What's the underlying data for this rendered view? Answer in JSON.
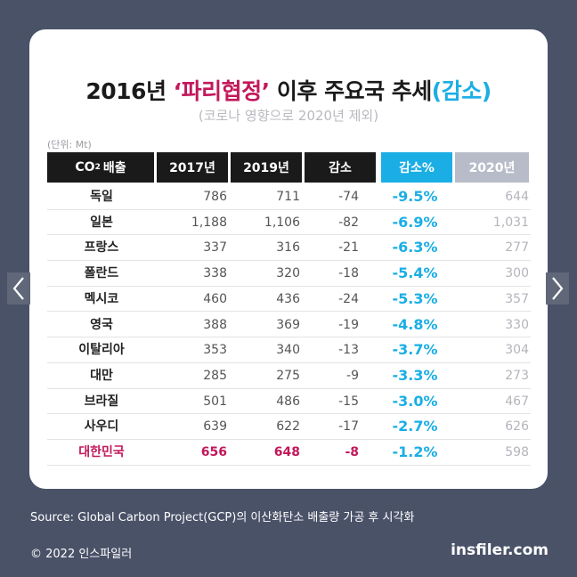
{
  "title": {
    "prefix": "2016년 ",
    "quoted": "‘파리협정’",
    "middle": " 이후 주요국 추세",
    "accent": "(감소)"
  },
  "subtitle": "(코로나 영향으로 2020년 제외)",
  "unit": "(단위: Mt)",
  "headers": {
    "country_main": "CO",
    "country_sub": "2",
    "country_tail": "배출",
    "y2017": "2017년",
    "y2019": "2019년",
    "decrease": "감소",
    "pct": "감소%",
    "y2020": "2020년"
  },
  "colors": {
    "background": "#4a5268",
    "header_dark": "#1a1a1a",
    "header_cyan": "#1aaee5",
    "header_grey": "#b8bcc9",
    "highlight": "#c2185b"
  },
  "chart_data": {
    "type": "table",
    "columns": [
      "CO2 배출",
      "2017년",
      "2019년",
      "감소",
      "감소%",
      "2020년"
    ],
    "rows": [
      {
        "country": "독일",
        "y2017": "786",
        "y2019": "711",
        "decrease": "-74",
        "pct": "-9.5%",
        "y2020": "644"
      },
      {
        "country": "일본",
        "y2017": "1,188",
        "y2019": "1,106",
        "decrease": "-82",
        "pct": "-6.9%",
        "y2020": "1,031"
      },
      {
        "country": "프랑스",
        "y2017": "337",
        "y2019": "316",
        "decrease": "-21",
        "pct": "-6.3%",
        "y2020": "277"
      },
      {
        "country": "폴란드",
        "y2017": "338",
        "y2019": "320",
        "decrease": "-18",
        "pct": "-5.4%",
        "y2020": "300"
      },
      {
        "country": "멕시코",
        "y2017": "460",
        "y2019": "436",
        "decrease": "-24",
        "pct": "-5.3%",
        "y2020": "357"
      },
      {
        "country": "영국",
        "y2017": "388",
        "y2019": "369",
        "decrease": "-19",
        "pct": "-4.8%",
        "y2020": "330"
      },
      {
        "country": "이탈리아",
        "y2017": "353",
        "y2019": "340",
        "decrease": "-13",
        "pct": "-3.7%",
        "y2020": "304"
      },
      {
        "country": "대만",
        "y2017": "285",
        "y2019": "275",
        "decrease": "-9",
        "pct": "-3.3%",
        "y2020": "273"
      },
      {
        "country": "브라질",
        "y2017": "501",
        "y2019": "486",
        "decrease": "-15",
        "pct": "-3.0%",
        "y2020": "467"
      },
      {
        "country": "사우디",
        "y2017": "639",
        "y2019": "622",
        "decrease": "-17",
        "pct": "-2.7%",
        "y2020": "626"
      },
      {
        "country": "대한민국",
        "y2017": "656",
        "y2019": "648",
        "decrease": "-8",
        "pct": "-1.2%",
        "y2020": "598",
        "highlight": true
      }
    ]
  },
  "footer": {
    "source": "Source: Global Carbon Project(GCP)의 이산화탄소 배출량 가공 후 시각화",
    "copyright": "© 2022 인스파일러",
    "brand": "insfiler.com"
  },
  "nav": {
    "prev_icon": "chevron-left-icon",
    "next_icon": "chevron-right-icon"
  }
}
